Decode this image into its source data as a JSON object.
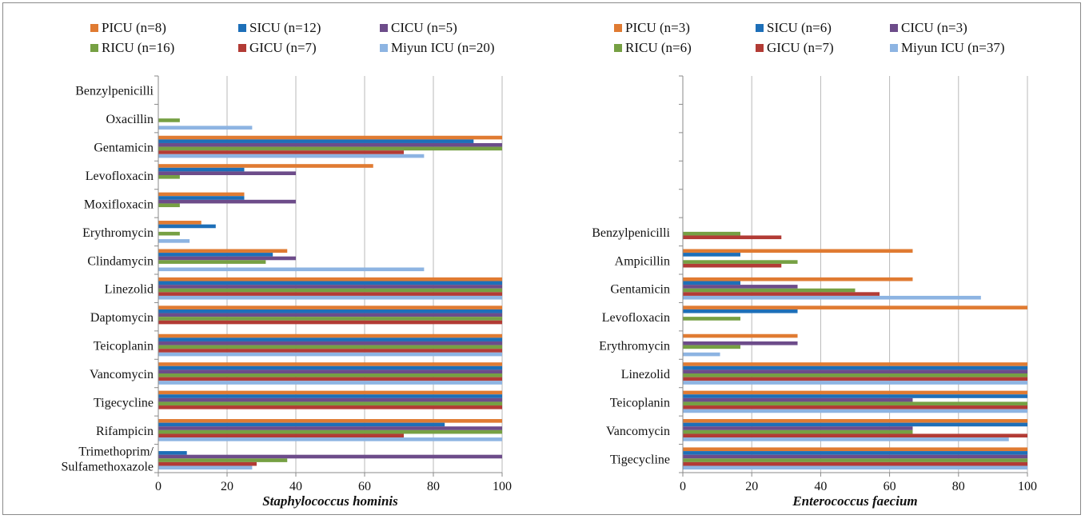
{
  "colors": {
    "PICU": "#e07b32",
    "SICU": "#1d6fb8",
    "CICU": "#6d4c8a",
    "RICU": "#76a043",
    "GICU": "#b23b35",
    "Miyun ICU": "#8db4e2"
  },
  "chart_data": [
    {
      "type": "bar",
      "orientation": "horizontal",
      "title": "",
      "xlabel": "Staphylococcus hominis",
      "ylabel": "",
      "xlim": [
        0,
        100
      ],
      "xticks": [
        "0",
        "20",
        "40",
        "60",
        "80",
        "100"
      ],
      "grid": true,
      "legend_position": "top",
      "categories": [
        "Benzylpenicilli",
        "Oxacillin",
        "Gentamicin",
        "Levofloxacin",
        "Moxifloxacin",
        "Erythromycin",
        "Clindamycin",
        "Linezolid",
        "Daptomycin",
        "Teicoplanin",
        "Vancomycin",
        "Tigecycline",
        "Rifampicin",
        "Trimethoprim/ Sulfamethoxazole"
      ],
      "series": [
        {
          "name": "PICU (n=8)",
          "key": "PICU",
          "values": [
            0,
            0,
            100,
            62.5,
            25,
            12.5,
            37.5,
            100,
            100,
            100,
            100,
            100,
            100,
            0
          ]
        },
        {
          "name": "SICU (n=12)",
          "key": "SICU",
          "values": [
            0,
            0,
            91.7,
            25,
            25,
            16.7,
            33.3,
            100,
            100,
            100,
            100,
            100,
            83.3,
            8.3
          ]
        },
        {
          "name": "CICU (n=5)",
          "key": "CICU",
          "values": [
            0,
            0,
            100,
            40,
            40,
            0,
            40,
            100,
            100,
            100,
            100,
            100,
            100,
            100
          ]
        },
        {
          "name": "RICU (n=16)",
          "key": "RICU",
          "values": [
            0,
            6.25,
            100,
            6.25,
            6.25,
            6.25,
            31.25,
            100,
            100,
            100,
            100,
            100,
            100,
            37.5
          ]
        },
        {
          "name": "GICU (n=7)",
          "key": "GICU",
          "values": [
            0,
            0,
            71.4,
            0,
            0,
            0,
            0,
            100,
            100,
            100,
            100,
            100,
            71.4,
            28.6
          ]
        },
        {
          "name": "Miyun ICU (n=20)",
          "key": "Miyun ICU",
          "values": [
            0,
            27.3,
            77.3,
            0,
            0,
            9.1,
            77.3,
            100,
            0,
            100,
            100,
            0,
            100,
            27.3
          ]
        }
      ]
    },
    {
      "type": "bar",
      "orientation": "horizontal",
      "title": "",
      "xlabel": "Enterococcus faecium",
      "ylabel": "",
      "xlim": [
        0,
        100
      ],
      "xticks": [
        "0",
        "20",
        "40",
        "60",
        "80",
        "100"
      ],
      "grid": true,
      "legend_position": "top",
      "categories": [
        "",
        "",
        "",
        "",
        "",
        "Benzylpenicilli",
        "Ampicillin",
        "Gentamicin",
        "Levofloxacin",
        "Erythromycin",
        "Linezolid",
        "Teicoplanin",
        "Vancomycin",
        "Tigecycline"
      ],
      "series": [
        {
          "name": "PICU (n=3)",
          "key": "PICU",
          "values": [
            0,
            0,
            0,
            0,
            0,
            0,
            66.7,
            66.7,
            100,
            33.3,
            100,
            100,
            100,
            100
          ]
        },
        {
          "name": "SICU (n=6)",
          "key": "SICU",
          "values": [
            0,
            0,
            0,
            0,
            0,
            0,
            16.7,
            16.7,
            33.3,
            0,
            100,
            100,
            100,
            100
          ]
        },
        {
          "name": "CICU (n=3)",
          "key": "CICU",
          "values": [
            0,
            0,
            0,
            0,
            0,
            0,
            0,
            33.3,
            0,
            33.3,
            100,
            66.7,
            66.7,
            100
          ]
        },
        {
          "name": "RICU (n=6)",
          "key": "RICU",
          "values": [
            0,
            0,
            0,
            0,
            0,
            16.7,
            33.3,
            50,
            16.7,
            16.7,
            100,
            100,
            66.7,
            100
          ]
        },
        {
          "name": "GICU (n=7)",
          "key": "GICU",
          "values": [
            0,
            0,
            0,
            0,
            0,
            28.6,
            28.6,
            57.1,
            0,
            0,
            100,
            100,
            100,
            100
          ]
        },
        {
          "name": "Miyun ICU (n=37)",
          "key": "Miyun ICU",
          "values": [
            0,
            0,
            0,
            0,
            0,
            0,
            0,
            86.5,
            0,
            10.8,
            100,
            100,
            94.6,
            100
          ]
        }
      ]
    }
  ]
}
